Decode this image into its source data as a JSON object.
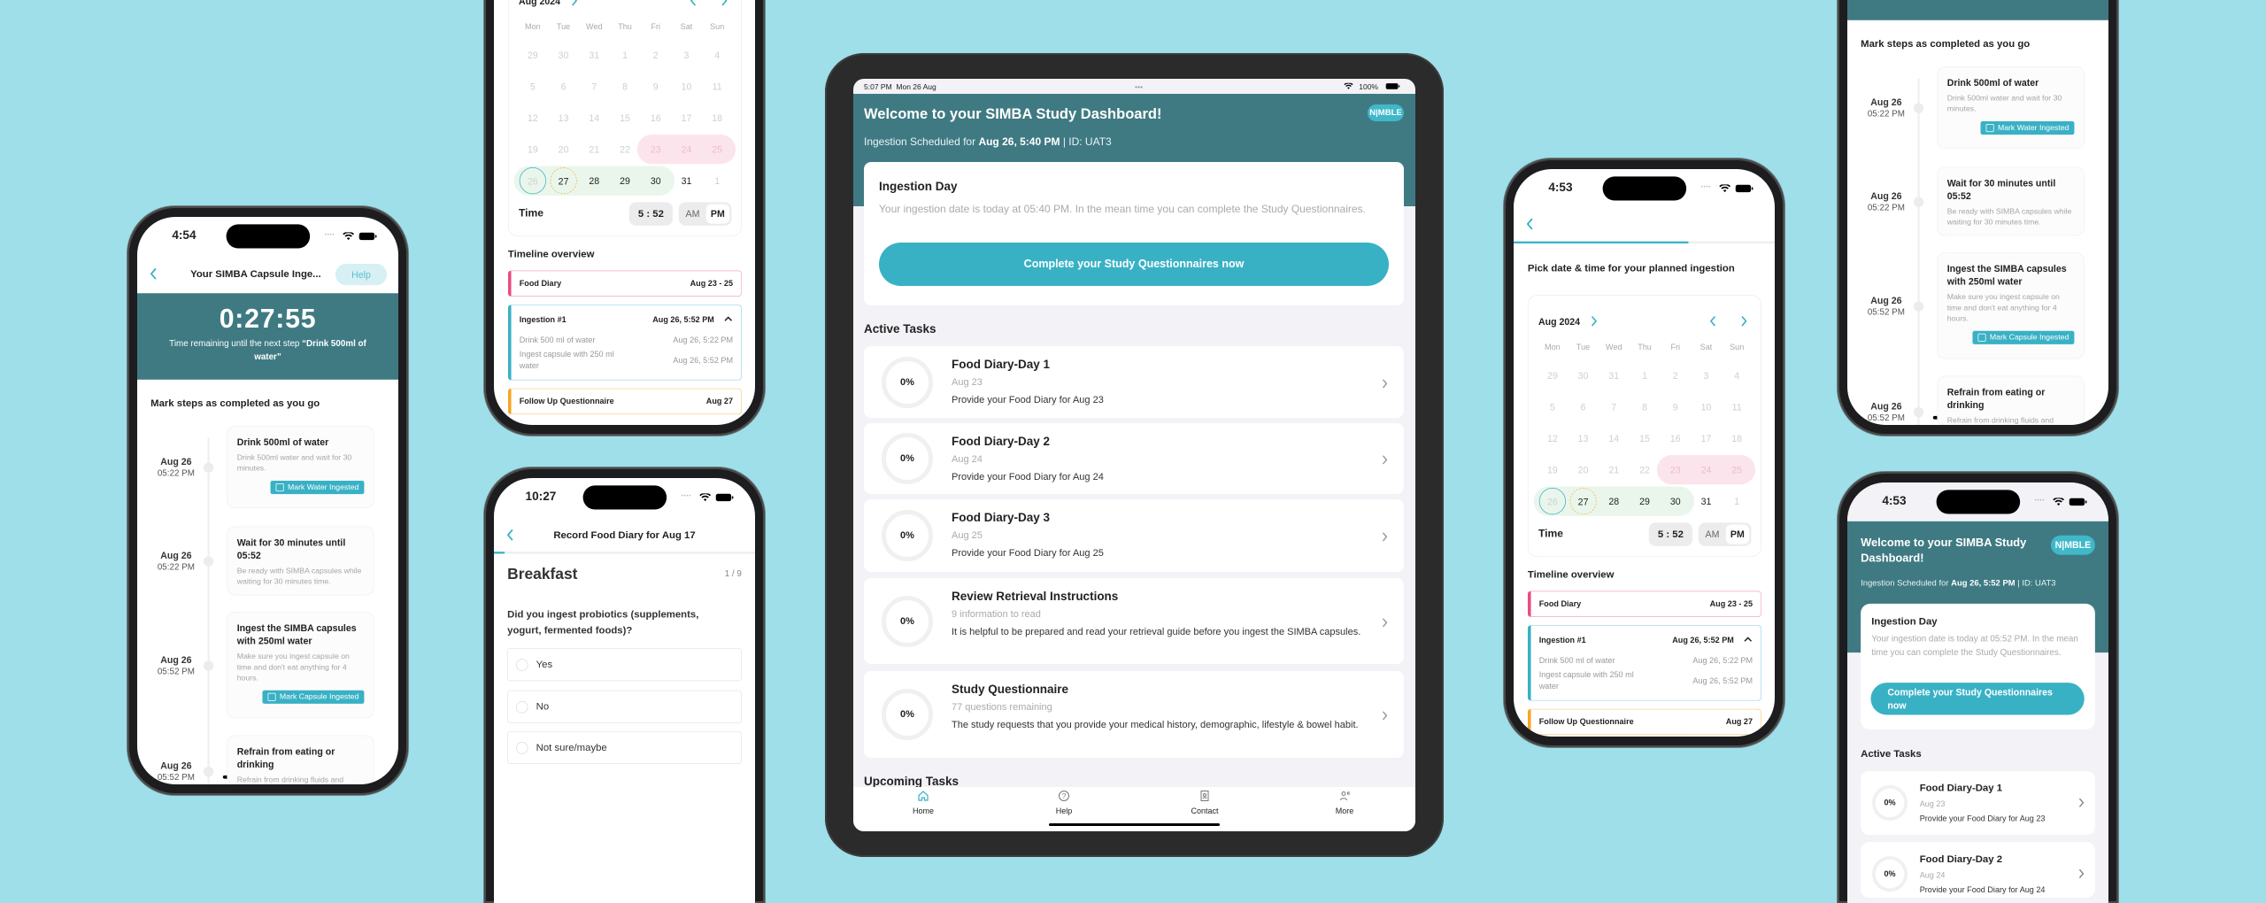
{
  "colors": {
    "background": "#9edfe9",
    "teal_header": "#3f7a83",
    "accent": "#39b1c5",
    "food_diary": "#e94c82",
    "ingestion": "#39b1c5",
    "follow_up": "#f5a623",
    "food_diary_range": "#fce4ec",
    "ingestion_window": "#eaf6ec"
  },
  "timer_screen": {
    "status_time": "4:54",
    "nav_title": "Your SIMBA Capsule Inge...",
    "help_label": "Help",
    "countdown": "0:27:55",
    "countdown_caption": "Time remaining until the next step",
    "countdown_step": "“Drink 500ml of water”",
    "steps_heading": "Mark steps as completed as you go",
    "steps": [
      {
        "date": "Aug 26",
        "time": "05:22 PM",
        "title": "Drink 500ml of water",
        "description": "Drink 500ml water and wait for 30 minutes.",
        "action": "Mark Water Ingested"
      },
      {
        "date": "Aug 26",
        "time": "05:22 PM",
        "title": "Wait for 30 minutes until 05:52",
        "description": "Be ready with SIMBA capsules while waiting for 30 minutes time."
      },
      {
        "date": "Aug 26",
        "time": "05:52 PM",
        "title": "Ingest the SIMBA capsules with 250ml water",
        "description": "Make sure you ingest capsule on time and don't eat anything for 4 hours.",
        "action": "Mark Capsule Ingested"
      },
      {
        "date": "Aug 26",
        "time": "05:52 PM",
        "title": "Refrain from eating or drinking",
        "description": "Refrain from drinking fluids and"
      }
    ]
  },
  "date_picker": {
    "status_time": "4:53",
    "progress": 0.67,
    "heading": "Pick date & time for your planned ingestion",
    "calendar": {
      "month_label": "Aug 2024",
      "weekdays": [
        "Mon",
        "Tue",
        "Wed",
        "Thu",
        "Fri",
        "Sat",
        "Sun"
      ],
      "weeks": [
        [
          "29",
          "30",
          "31",
          "1",
          "2",
          "3",
          "4"
        ],
        [
          "5",
          "6",
          "7",
          "8",
          "9",
          "10",
          "11"
        ],
        [
          "12",
          "13",
          "14",
          "15",
          "16",
          "17",
          "18"
        ],
        [
          "19",
          "20",
          "21",
          "22",
          "23",
          "24",
          "25"
        ],
        [
          "26",
          "27",
          "28",
          "29",
          "30",
          "31",
          "1"
        ]
      ],
      "food_diary_range": [
        "23",
        "25"
      ],
      "ingestion_window": [
        "26",
        "30"
      ],
      "selected_day": "26",
      "follow_up_day": "27"
    },
    "time_label": "Time",
    "time_value": "5 : 52",
    "meridiem_options": [
      "AM",
      "PM"
    ],
    "meridiem_selected": "PM",
    "timeline_heading": "Timeline overview",
    "timeline": {
      "food_diary": {
        "label": "Food Diary",
        "value": "Aug 23 - 25"
      },
      "ingestion": {
        "label": "Ingestion #1",
        "value": "Aug 26, 5:52 PM",
        "items": [
          {
            "label": "Drink 500 ml of water",
            "value": "Aug 26, 5:22 PM"
          },
          {
            "label": "Ingest capsule with 250 ml water",
            "value": "Aug 26, 5:52 PM"
          }
        ]
      },
      "follow_up": {
        "label": "Follow Up Questionnaire",
        "value": "Aug 27"
      }
    }
  },
  "food_diary": {
    "status_time": "10:27",
    "nav_title": "Record Food Diary for Aug 17",
    "progress": 0.04,
    "section": "Breakfast",
    "page": "1 / 9",
    "question": "Did you ingest probiotics (supplements, yogurt, fermented foods)?",
    "options": [
      "Yes",
      "No",
      "Not sure/maybe"
    ]
  },
  "dashboard_phone": {
    "status_time": "4:53",
    "title": "Welcome to your SIMBA Study Dashboard!",
    "logo": "N|MBLE",
    "schedule_prefix": "Ingestion Scheduled for",
    "schedule_value": "Aug 26, 5:52 PM",
    "schedule_suffix": "| ID: UAT3",
    "card_title": "Ingestion Day",
    "card_body": "Your ingestion date is today at 05:52 PM. In the mean time you can complete the Study Questionnaires.",
    "cta": "Complete your Study Questionnaires now",
    "active_heading": "Active Tasks",
    "tasks": [
      {
        "progress": "0%",
        "title": "Food Diary-Day 1",
        "subtitle": "Aug 23",
        "description": "Provide your Food Diary for Aug 23"
      },
      {
        "progress": "0%",
        "title": "Food Diary-Day 2",
        "subtitle": "Aug 24",
        "description": "Provide your Food Diary for Aug 24"
      }
    ]
  },
  "dashboard_tablet": {
    "status_time": "5:07 PM",
    "status_date": "Mon 26 Aug",
    "battery": "100%",
    "title": "Welcome to your SIMBA Study Dashboard!",
    "logo": "N|MBLE",
    "schedule_prefix": "Ingestion Scheduled for",
    "schedule_value": "Aug 26, 5:40 PM",
    "schedule_suffix": "| ID: UAT3",
    "card_title": "Ingestion Day",
    "card_body": "Your ingestion date is today at 05:40 PM. In the mean time you can complete the Study Questionnaires.",
    "cta": "Complete your Study Questionnaires now",
    "active_heading": "Active Tasks",
    "tasks": [
      {
        "progress": "0%",
        "title": "Food Diary-Day 1",
        "subtitle": "Aug 23",
        "description": "Provide your Food Diary for Aug 23"
      },
      {
        "progress": "0%",
        "title": "Food Diary-Day 2",
        "subtitle": "Aug 24",
        "description": "Provide your Food Diary for Aug 24"
      },
      {
        "progress": "0%",
        "title": "Food Diary-Day 3",
        "subtitle": "Aug 25",
        "description": "Provide your Food Diary for Aug 25"
      },
      {
        "progress": "0%",
        "title": "Review Retrieval Instructions",
        "subtitle": "9 information to read",
        "description": "It is helpful to be prepared and read your retrieval guide before you ingest the SIMBA capsules."
      },
      {
        "progress": "0%",
        "title": "Study Questionnaire",
        "subtitle": "77 questions remaining",
        "description": "The study requests that you provide your medical history, demographic, lifestyle & bowel habit."
      }
    ],
    "upcoming_heading": "Upcoming Tasks",
    "tabs": [
      {
        "label": "Home",
        "icon": "home-icon"
      },
      {
        "label": "Help",
        "icon": "help-circle-icon"
      },
      {
        "label": "Contact",
        "icon": "contact-card-icon"
      },
      {
        "label": "More",
        "icon": "person-more-icon"
      }
    ],
    "active_tab": "Home"
  }
}
